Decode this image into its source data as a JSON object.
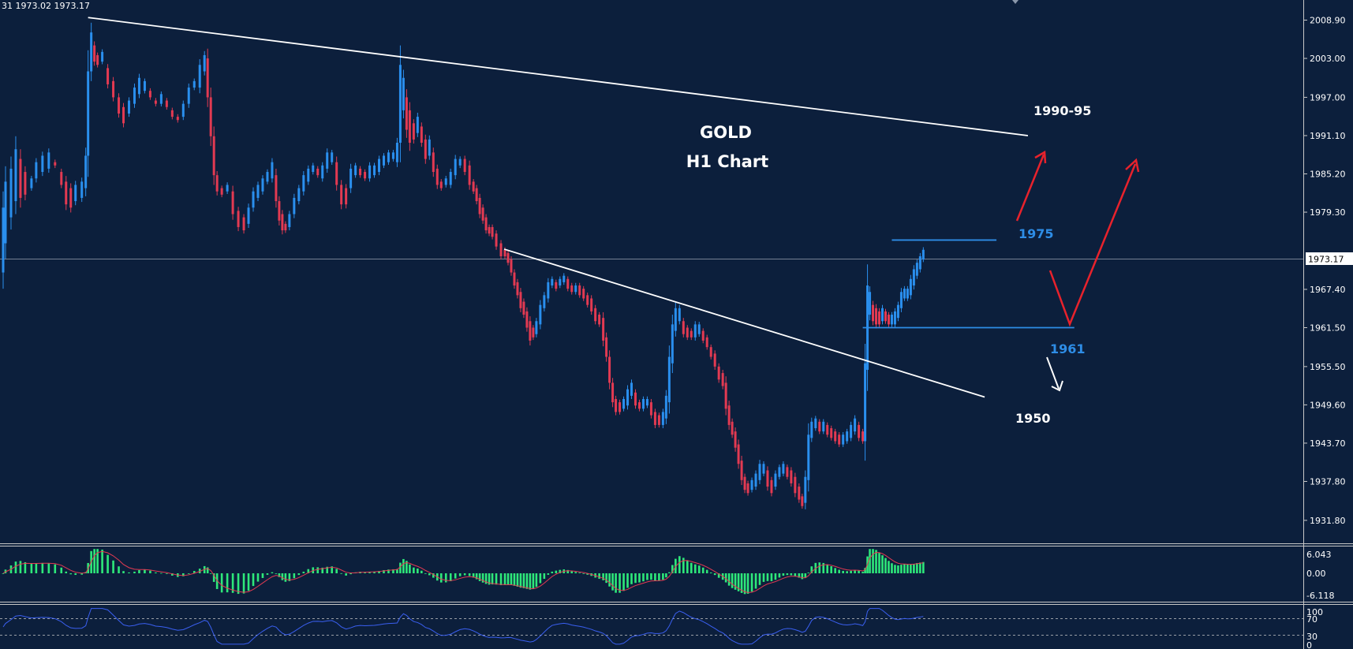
{
  "header": {
    "ohlc_text": "31 1973.02 1973.17"
  },
  "chart_data": {
    "type": "candlestick",
    "title": "GOLD",
    "subtitle": "H1 Chart",
    "symbol": "GOLD",
    "timeframe": "H1",
    "ylim": [
      1928.5,
      2012.0
    ],
    "y_ticks": [
      "2008.90",
      "2003.00",
      "1997.00",
      "1991.10",
      "1985.20",
      "1979.30",
      "1973.17",
      "1967.40",
      "1961.50",
      "1955.50",
      "1949.60",
      "1943.70",
      "1937.80",
      "1931.80"
    ],
    "current_price": "1973.17",
    "candles": [
      [
        0,
        1980.0,
        1970.0
      ],
      [
        3,
        1984.0,
        1974.5
      ],
      [
        10,
        1986.0,
        1978.5
      ],
      [
        16,
        1989.0,
        1981.0
      ],
      [
        22,
        1987.5,
        1981.5
      ],
      [
        28,
        1985.5,
        1982.0
      ],
      [
        36,
        1984.5,
        1983.0
      ],
      [
        42,
        1987.0,
        1984.5
      ],
      [
        50,
        1988.0,
        1985.5
      ],
      [
        58,
        1988.5,
        1986.0
      ],
      [
        66,
        1987.0,
        1986.5
      ],
      [
        74,
        1985.5,
        1983.5
      ],
      [
        80,
        1984.0,
        1980.5
      ],
      [
        86,
        1983.0,
        1980.0
      ],
      [
        92,
        1983.5,
        1981.0
      ],
      [
        100,
        1984.0,
        1981.5
      ],
      [
        105,
        1988.0,
        1983.0
      ],
      [
        108,
        2001.0,
        1988.0
      ],
      [
        112,
        2007.0,
        2001.0
      ],
      [
        116,
        2005.0,
        2002.5
      ],
      [
        120,
        2003.5,
        2002.0
      ],
      [
        126,
        2004.0,
        2002.5
      ],
      [
        133,
        2001.5,
        1999.0
      ],
      [
        140,
        1999.5,
        1997.0
      ],
      [
        147,
        1997.0,
        1994.5
      ],
      [
        153,
        1995.5,
        1993.0
      ],
      [
        160,
        1996.5,
        1994.5
      ],
      [
        167,
        1998.5,
        1996.0
      ],
      [
        173,
        2000.0,
        1997.5
      ],
      [
        180,
        1999.5,
        1998.0
      ],
      [
        187,
        1998.0,
        1997.0
      ],
      [
        194,
        1996.5,
        1996.0
      ],
      [
        201,
        1997.5,
        1996.0
      ],
      [
        208,
        1996.5,
        1995.5
      ],
      [
        215,
        1995.0,
        1994.0
      ],
      [
        222,
        1994.0,
        1993.5
      ],
      [
        229,
        1996.0,
        1994.0
      ],
      [
        236,
        1998.5,
        1996.0
      ],
      [
        243,
        1999.5,
        1998.5
      ],
      [
        250,
        2002.0,
        1998.5
      ],
      [
        256,
        2003.5,
        2001.0
      ],
      [
        260,
        2003.0,
        1997.0
      ],
      [
        264,
        1997.0,
        1991.0
      ],
      [
        268,
        1991.0,
        1985.0
      ],
      [
        272,
        1985.0,
        1982.5
      ],
      [
        278,
        1983.0,
        1982.0
      ],
      [
        285,
        1983.5,
        1982.5
      ],
      [
        292,
        1982.5,
        1979.0
      ],
      [
        299,
        1979.5,
        1977.0
      ],
      [
        306,
        1978.5,
        1976.5
      ],
      [
        312,
        1980.0,
        1977.5
      ],
      [
        318,
        1982.5,
        1980.0
      ],
      [
        324,
        1983.5,
        1981.5
      ],
      [
        330,
        1984.5,
        1982.5
      ],
      [
        336,
        1985.5,
        1984.0
      ],
      [
        342,
        1987.0,
        1984.5
      ],
      [
        347,
        1985.0,
        1981.0
      ],
      [
        351,
        1981.0,
        1978.0
      ],
      [
        355,
        1979.0,
        1976.5
      ],
      [
        359,
        1977.5,
        1976.5
      ],
      [
        364,
        1979.0,
        1977.0
      ],
      [
        370,
        1981.5,
        1979.0
      ],
      [
        376,
        1983.0,
        1981.0
      ],
      [
        382,
        1985.0,
        1982.5
      ],
      [
        388,
        1986.0,
        1984.0
      ],
      [
        394,
        1986.5,
        1985.5
      ],
      [
        400,
        1986.0,
        1985.0
      ],
      [
        406,
        1986.5,
        1984.5
      ],
      [
        412,
        1988.5,
        1986.0
      ],
      [
        418,
        1988.5,
        1987.0
      ],
      [
        424,
        1987.0,
        1983.5
      ],
      [
        430,
        1983.5,
        1980.5
      ],
      [
        436,
        1983.0,
        1980.5
      ],
      [
        442,
        1986.0,
        1983.0
      ],
      [
        448,
        1986.5,
        1985.0
      ],
      [
        454,
        1986.0,
        1985.0
      ],
      [
        460,
        1985.5,
        1984.5
      ],
      [
        466,
        1986.5,
        1984.5
      ],
      [
        472,
        1986.5,
        1985.0
      ],
      [
        478,
        1987.5,
        1985.5
      ],
      [
        484,
        1988.0,
        1986.5
      ],
      [
        490,
        1988.5,
        1987.0
      ],
      [
        496,
        1988.5,
        1987.5
      ],
      [
        501,
        1990.0,
        1987.0
      ],
      [
        505,
        2002.0,
        1990.0
      ],
      [
        509,
        2000.0,
        1995.0
      ],
      [
        513,
        1997.0,
        1992.0
      ],
      [
        517,
        1995.0,
        1990.0
      ],
      [
        522,
        1993.0,
        1990.5
      ],
      [
        527,
        1994.0,
        1991.5
      ],
      [
        532,
        1992.5,
        1990.0
      ],
      [
        537,
        1990.5,
        1987.5
      ],
      [
        542,
        1990.5,
        1988.0
      ],
      [
        547,
        1988.5,
        1985.5
      ],
      [
        552,
        1986.0,
        1983.5
      ],
      [
        557,
        1984.0,
        1983.0
      ],
      [
        563,
        1984.5,
        1983.5
      ],
      [
        569,
        1985.5,
        1983.5
      ],
      [
        575,
        1987.5,
        1985.0
      ],
      [
        581,
        1987.5,
        1986.5
      ],
      [
        587,
        1987.5,
        1985.5
      ],
      [
        593,
        1986.5,
        1983.5
      ],
      [
        598,
        1984.0,
        1982.5
      ],
      [
        602,
        1983.0,
        1981.0
      ],
      [
        606,
        1981.5,
        1979.0
      ],
      [
        610,
        1980.0,
        1978.0
      ],
      [
        614,
        1978.5,
        1976.5
      ],
      [
        618,
        1977.0,
        1976.0
      ],
      [
        622,
        1977.0,
        1975.5
      ],
      [
        627,
        1976.0,
        1974.0
      ],
      [
        633,
        1974.5,
        1972.5
      ],
      [
        638,
        1973.5,
        1972.5
      ],
      [
        642,
        1973.0,
        1971.5
      ],
      [
        646,
        1972.0,
        1970.0
      ],
      [
        650,
        1970.0,
        1968.0
      ],
      [
        654,
        1968.5,
        1966.5
      ],
      [
        658,
        1967.0,
        1964.5
      ],
      [
        662,
        1965.5,
        1963.5
      ],
      [
        666,
        1964.0,
        1961.5
      ],
      [
        670,
        1962.5,
        1959.5
      ],
      [
        674,
        1961.5,
        1960.0
      ],
      [
        678,
        1962.5,
        1960.5
      ],
      [
        683,
        1965.0,
        1962.0
      ],
      [
        688,
        1966.5,
        1964.5
      ],
      [
        693,
        1968.5,
        1966.0
      ],
      [
        698,
        1969.0,
        1968.0
      ],
      [
        703,
        1968.5,
        1967.5
      ],
      [
        708,
        1969.0,
        1968.0
      ],
      [
        713,
        1969.5,
        1968.5
      ],
      [
        718,
        1969.0,
        1967.5
      ],
      [
        723,
        1968.0,
        1967.0
      ],
      [
        728,
        1968.0,
        1967.0
      ],
      [
        733,
        1968.0,
        1966.5
      ],
      [
        738,
        1967.5,
        1966.0
      ],
      [
        743,
        1966.5,
        1965.0
      ],
      [
        748,
        1966.0,
        1964.0
      ],
      [
        753,
        1964.5,
        1962.5
      ],
      [
        758,
        1963.5,
        1962.0
      ],
      [
        763,
        1963.0,
        1959.5
      ],
      [
        767,
        1960.0,
        1957.0
      ],
      [
        771,
        1957.0,
        1953.0
      ],
      [
        775,
        1953.0,
        1950.0
      ],
      [
        779,
        1950.5,
        1948.5
      ],
      [
        784,
        1950.0,
        1948.5
      ],
      [
        789,
        1950.5,
        1949.0
      ],
      [
        794,
        1952.0,
        1949.5
      ],
      [
        799,
        1953.0,
        1951.0
      ],
      [
        804,
        1951.5,
        1949.5
      ],
      [
        809,
        1950.0,
        1949.0
      ],
      [
        814,
        1950.5,
        1949.0
      ],
      [
        819,
        1950.5,
        1949.5
      ],
      [
        824,
        1950.0,
        1948.0
      ],
      [
        829,
        1948.5,
        1946.5
      ],
      [
        834,
        1948.0,
        1946.5
      ],
      [
        839,
        1948.5,
        1946.5
      ],
      [
        843,
        1951.0,
        1947.5
      ],
      [
        847,
        1957.0,
        1950.0
      ],
      [
        851,
        1962.0,
        1956.0
      ],
      [
        855,
        1964.5,
        1961.0
      ],
      [
        860,
        1964.5,
        1962.5
      ],
      [
        865,
        1962.5,
        1960.5
      ],
      [
        870,
        1961.5,
        1960.0
      ],
      [
        875,
        1961.0,
        1960.0
      ],
      [
        880,
        1962.0,
        1960.0
      ],
      [
        885,
        1962.0,
        1960.5
      ],
      [
        890,
        1961.0,
        1959.5
      ],
      [
        895,
        1960.0,
        1958.5
      ],
      [
        900,
        1958.5,
        1957.0
      ],
      [
        905,
        1957.5,
        1955.5
      ],
      [
        910,
        1955.5,
        1953.5
      ],
      [
        915,
        1954.5,
        1952.5
      ],
      [
        919,
        1953.0,
        1949.0
      ],
      [
        923,
        1949.5,
        1946.5
      ],
      [
        927,
        1947.0,
        1945.0
      ],
      [
        931,
        1945.5,
        1943.0
      ],
      [
        935,
        1943.5,
        1940.5
      ],
      [
        939,
        1941.0,
        1938.0
      ],
      [
        943,
        1938.5,
        1936.5
      ],
      [
        947,
        1937.5,
        1936.0
      ],
      [
        952,
        1938.0,
        1936.5
      ],
      [
        957,
        1939.0,
        1937.0
      ],
      [
        962,
        1940.5,
        1938.0
      ],
      [
        967,
        1940.5,
        1939.0
      ],
      [
        972,
        1939.5,
        1937.0
      ],
      [
        977,
        1938.0,
        1936.0
      ],
      [
        982,
        1939.0,
        1937.0
      ],
      [
        987,
        1940.0,
        1938.5
      ],
      [
        992,
        1940.5,
        1939.0
      ],
      [
        997,
        1940.0,
        1938.5
      ],
      [
        1002,
        1939.5,
        1937.5
      ],
      [
        1007,
        1938.5,
        1936.0
      ],
      [
        1012,
        1937.0,
        1935.0
      ],
      [
        1016,
        1935.5,
        1934.0
      ],
      [
        1020,
        1938.5,
        1934.5
      ],
      [
        1024,
        1945.0,
        1938.0
      ],
      [
        1028,
        1947.0,
        1944.5
      ],
      [
        1033,
        1947.5,
        1946.0
      ],
      [
        1038,
        1947.0,
        1945.5
      ],
      [
        1043,
        1947.0,
        1945.5
      ],
      [
        1048,
        1946.5,
        1945.0
      ],
      [
        1053,
        1946.0,
        1944.5
      ],
      [
        1058,
        1945.5,
        1944.0
      ],
      [
        1063,
        1945.0,
        1943.5
      ],
      [
        1068,
        1945.0,
        1943.5
      ],
      [
        1073,
        1945.5,
        1944.0
      ],
      [
        1078,
        1946.5,
        1944.5
      ],
      [
        1083,
        1947.5,
        1945.5
      ],
      [
        1088,
        1946.5,
        1944.5
      ],
      [
        1093,
        1945.5,
        1944.0
      ],
      [
        1096,
        1956.0,
        1944.0
      ],
      [
        1099,
        1968.0,
        1955.0
      ],
      [
        1102,
        1967.0,
        1963.5
      ],
      [
        1106,
        1965.0,
        1962.5
      ],
      [
        1110,
        1964.5,
        1962.0
      ],
      [
        1114,
        1964.0,
        1962.0
      ],
      [
        1118,
        1964.5,
        1962.5
      ],
      [
        1122,
        1964.0,
        1962.5
      ],
      [
        1126,
        1963.5,
        1962.0
      ],
      [
        1130,
        1963.5,
        1962.0
      ],
      [
        1134,
        1964.0,
        1962.0
      ],
      [
        1138,
        1965.0,
        1963.0
      ],
      [
        1142,
        1967.0,
        1964.5
      ],
      [
        1146,
        1967.5,
        1966.0
      ],
      [
        1150,
        1967.5,
        1966.0
      ],
      [
        1154,
        1969.0,
        1966.5
      ],
      [
        1158,
        1970.5,
        1968.0
      ],
      [
        1162,
        1971.5,
        1969.5
      ],
      [
        1166,
        1972.5,
        1970.5
      ],
      [
        1170,
        1973.5,
        1972.0
      ]
    ],
    "annotations": [
      {
        "text": "1990-95",
        "color": "#ffffff"
      },
      {
        "text": "1975",
        "color": "#2e8de6"
      },
      {
        "text": "1961",
        "color": "#2e8de6"
      },
      {
        "text": "1950",
        "color": "#ffffff"
      }
    ],
    "trendlines": [
      {
        "from": [
          108,
          2009.3
        ],
        "to": [
          1303,
          1991.1
        ],
        "color": "#ffffff"
      },
      {
        "from": [
          637,
          1973.6
        ],
        "to": [
          1248,
          1950.8
        ],
        "color": "#ffffff"
      }
    ],
    "levels": [
      {
        "price": 1975.0,
        "from": 1130,
        "to": 1263,
        "color": "#2e8de6"
      },
      {
        "price": 1961.5,
        "from": 1093,
        "to": 1362,
        "color": "#2e8de6"
      }
    ],
    "macd_panel": {
      "ticks": [
        "6.043",
        "0.00",
        "-6.118"
      ]
    },
    "rsi_panel": {
      "ticks": [
        "100",
        "70",
        "30",
        "0"
      ],
      "levels": [
        70,
        30
      ]
    },
    "colors": {
      "background": "#0c1f3c",
      "bull": "#2a8fee",
      "bear": "#e33a52",
      "histogram": "#2ee87a",
      "signal": "#e33a52",
      "rsi": "#3a5ff0",
      "arrow_red": "#e8222c",
      "grid_line": "#ffffff"
    }
  }
}
